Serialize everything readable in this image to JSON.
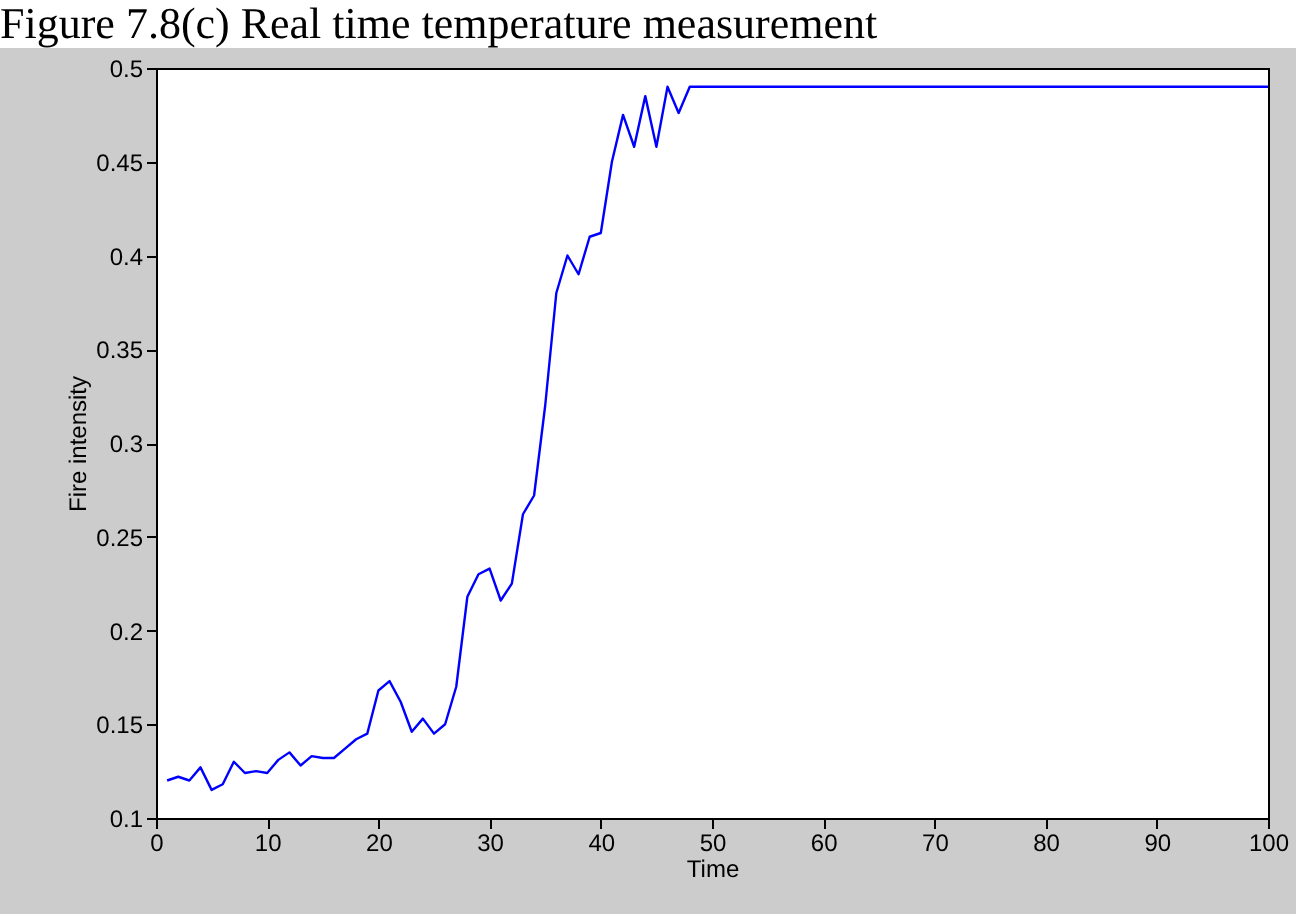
{
  "chart_data": {
    "type": "line",
    "title": "Figure 7.8(c) Real time temperature measurement",
    "xlabel": "Time",
    "ylabel": "Fire intensity",
    "x": [
      1,
      2,
      3,
      4,
      5,
      6,
      7,
      8,
      9,
      10,
      11,
      12,
      13,
      14,
      15,
      16,
      17,
      18,
      19,
      20,
      21,
      22,
      23,
      24,
      25,
      26,
      27,
      28,
      29,
      30,
      31,
      32,
      33,
      34,
      35,
      36,
      37,
      38,
      39,
      40,
      41,
      42,
      43,
      44,
      45,
      46,
      47,
      48,
      100
    ],
    "series": [
      {
        "color": "#0000ff",
        "values": [
          0.12,
          0.122,
          0.12,
          0.127,
          0.115,
          0.118,
          0.13,
          0.124,
          0.125,
          0.124,
          0.131,
          0.135,
          0.128,
          0.133,
          0.132,
          0.132,
          0.137,
          0.142,
          0.145,
          0.168,
          0.173,
          0.162,
          0.146,
          0.153,
          0.145,
          0.15,
          0.17,
          0.218,
          0.23,
          0.233,
          0.216,
          0.225,
          0.262,
          0.272,
          0.32,
          0.38,
          0.4,
          0.39,
          0.41,
          0.412,
          0.45,
          0.475,
          0.458,
          0.485,
          0.458,
          0.49,
          0.476,
          0.49,
          0.49
        ]
      }
    ],
    "xlim": [
      0,
      100
    ],
    "xticks": [
      0,
      10,
      20,
      30,
      40,
      50,
      60,
      70,
      80,
      90,
      100
    ],
    "ylim": [
      0.1,
      0.5
    ],
    "yticks": [
      0.1,
      0.15,
      0.2,
      0.25,
      0.3,
      0.35,
      0.4,
      0.45,
      0.5
    ],
    "grid": false,
    "marker": "none",
    "line_style": "solid"
  }
}
